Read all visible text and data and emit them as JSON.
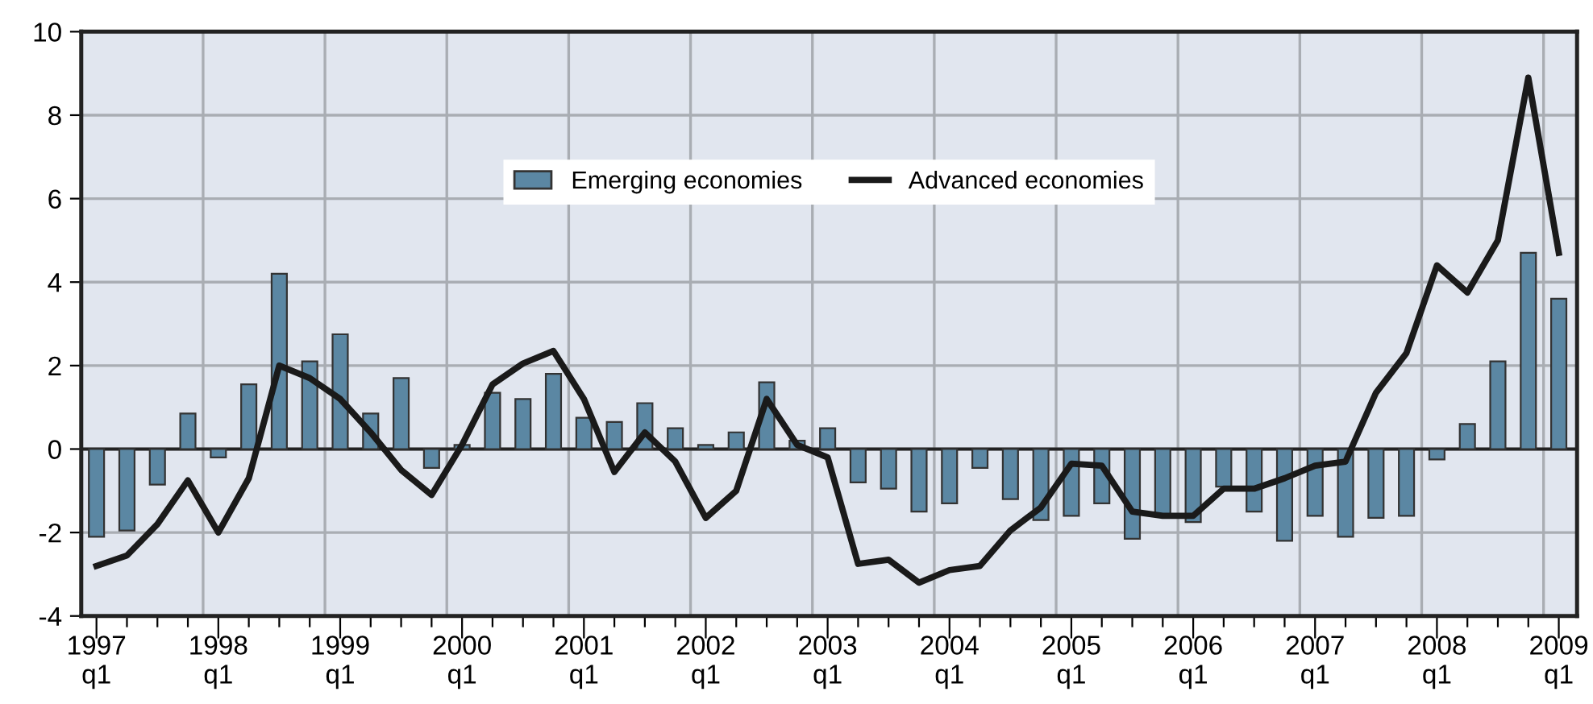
{
  "chart_data": {
    "type": "bar",
    "categories": [
      "1997\nq1",
      null,
      null,
      null,
      "1998\nq1",
      null,
      null,
      null,
      "1999\nq1",
      null,
      null,
      null,
      "2000\nq1",
      null,
      null,
      null,
      "2001\nq1",
      null,
      null,
      null,
      "2002\nq1",
      null,
      null,
      null,
      "2003\nq1",
      null,
      null,
      null,
      "2004\nq1",
      null,
      null,
      null,
      "2005\nq1",
      null,
      null,
      null,
      "2006\nq1",
      null,
      null,
      null,
      "2007\nq1",
      null,
      null,
      null,
      "2008\nq1",
      null,
      null,
      null,
      "2009\nq1"
    ],
    "series": [
      {
        "name": "Emerging economies",
        "color": "#5b87a3",
        "values": [
          -2.1,
          -1.95,
          -0.85,
          0.85,
          -0.2,
          1.55,
          4.2,
          2.1,
          2.75,
          0.85,
          1.7,
          -0.45,
          0.1,
          1.35,
          1.2,
          1.8,
          0.75,
          0.65,
          1.1,
          0.5,
          0.1,
          0.4,
          1.6,
          0.2,
          0.5,
          -0.8,
          -0.95,
          -1.5,
          -1.3,
          -0.45,
          -1.2,
          -1.7,
          -1.6,
          -1.3,
          -2.15,
          -1.6,
          -1.75,
          -0.9,
          -1.5,
          -2.2,
          -1.6,
          -2.1,
          -1.65,
          -1.6,
          -0.25,
          0.6,
          2.1,
          4.7,
          3.6
        ]
      },
      {
        "name": "Advanced economies",
        "type": "line",
        "color": "#1a1a1a",
        "values": [
          -2.8,
          -2.55,
          -1.8,
          -0.75,
          -2.0,
          -0.7,
          2.0,
          1.7,
          1.2,
          0.4,
          -0.5,
          -1.1,
          0.1,
          1.55,
          2.05,
          2.35,
          1.2,
          -0.55,
          0.4,
          -0.3,
          -1.65,
          -1.0,
          1.2,
          0.1,
          -0.2,
          -2.75,
          -2.65,
          -3.2,
          -2.9,
          -2.8,
          -1.95,
          -1.4,
          -0.35,
          -0.4,
          -1.5,
          -1.6,
          -1.6,
          -0.95,
          -0.95,
          -0.7,
          -0.4,
          -0.3,
          1.35,
          2.3,
          4.4,
          3.75,
          5.0,
          8.9,
          4.7
        ]
      }
    ],
    "ylim": [
      -4,
      10
    ],
    "yticks": [
      -4,
      -2,
      0,
      2,
      4,
      6,
      8,
      10
    ],
    "grid": true,
    "legend": "top",
    "marker": "none",
    "line_style": "solid"
  }
}
